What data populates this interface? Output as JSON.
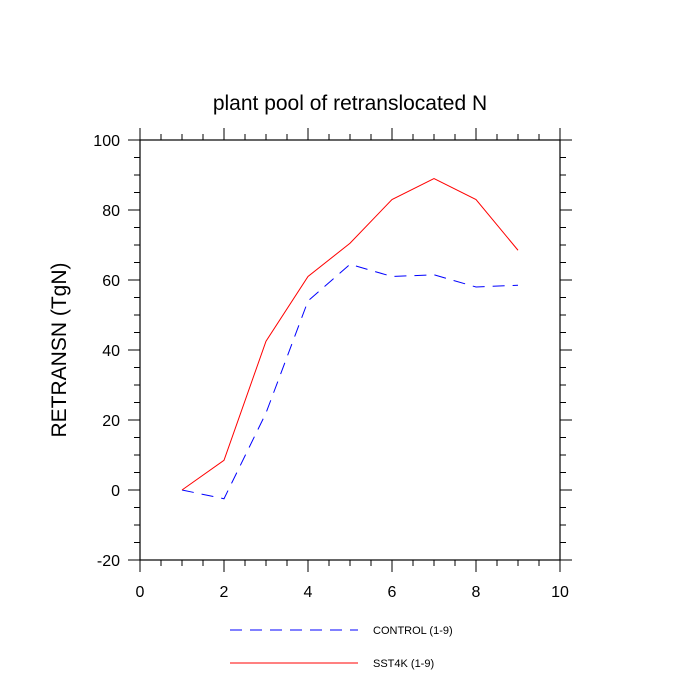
{
  "chart_data": {
    "type": "line",
    "title": "plant pool of retranslocated N",
    "ylabel": "RETRANSN  (TgN)",
    "xlabel": "",
    "xlim": [
      0,
      10
    ],
    "ylim": [
      -20,
      100
    ],
    "xticks": [
      0,
      2,
      4,
      6,
      8,
      10
    ],
    "yticks": [
      -20,
      0,
      20,
      40,
      60,
      80,
      100
    ],
    "x": [
      1,
      2,
      3,
      4,
      5,
      6,
      7,
      8,
      9
    ],
    "series": [
      {
        "name": "CONTROL (1-9)",
        "values": [
          0,
          -2.5,
          22,
          54,
          64.5,
          61,
          61.5,
          58,
          58.5
        ],
        "color": "#0000ff",
        "dash": "dashed"
      },
      {
        "name": "SST4K (1-9)",
        "values": [
          0,
          8.5,
          42.5,
          61,
          70.5,
          83,
          89,
          83,
          68.5
        ],
        "color": "#ff0000",
        "dash": "solid"
      }
    ],
    "legend_position": "bottom"
  }
}
